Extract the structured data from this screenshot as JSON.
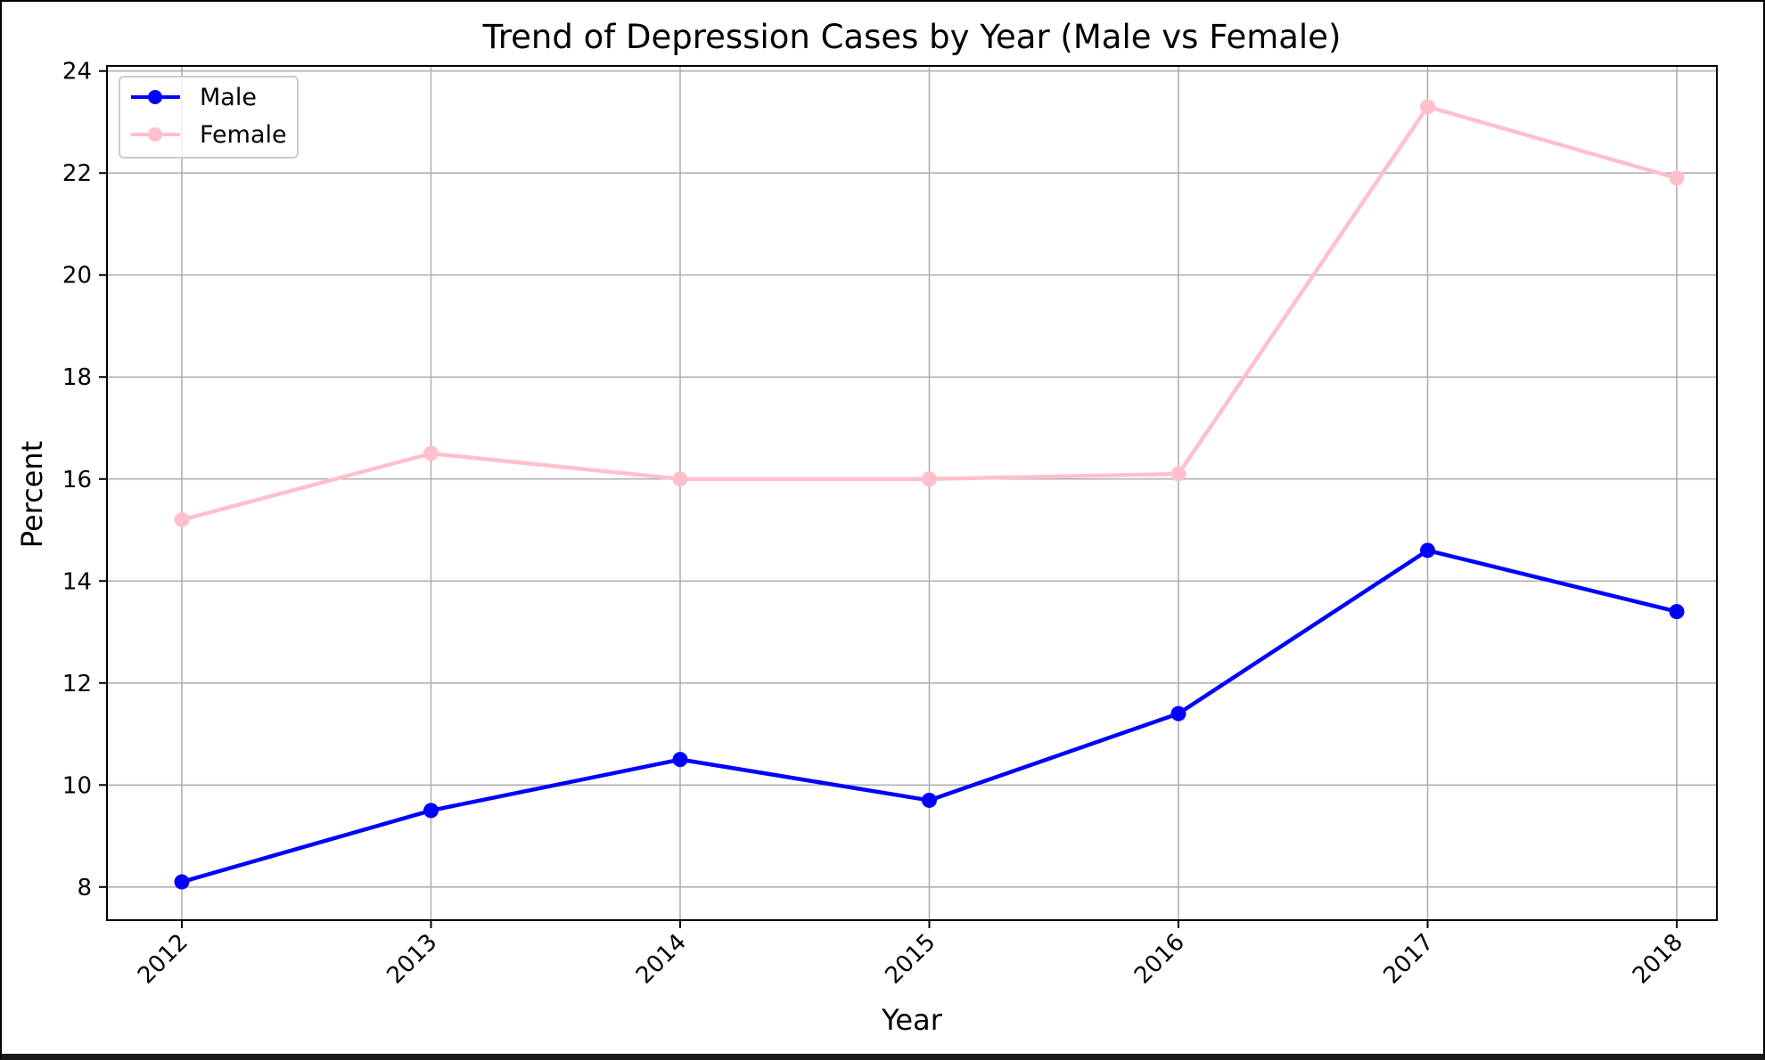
{
  "chart_data": {
    "type": "line",
    "title": "Trend of Depression Cases by Year (Male vs Female)",
    "xlabel": "Year",
    "ylabel": "Percent",
    "x": [
      "2012",
      "2013",
      "2014",
      "2015",
      "2016",
      "2017",
      "2018"
    ],
    "y_ticks": [
      "8",
      "10",
      "12",
      "14",
      "16",
      "18",
      "20",
      "22",
      "24"
    ],
    "ylim": [
      7.35,
      24.1
    ],
    "grid": true,
    "legend_position": "top-left",
    "x_tick_rotation": -45,
    "series": [
      {
        "name": "Male",
        "color": "#0000ff",
        "marker": "circle",
        "values": [
          8.1,
          9.5,
          10.5,
          9.7,
          11.4,
          14.6,
          13.4
        ]
      },
      {
        "name": "Female",
        "color": "#ffc0cb",
        "marker": "circle",
        "values": [
          15.2,
          16.5,
          16.0,
          16.0,
          16.1,
          23.3,
          21.9
        ]
      }
    ]
  }
}
